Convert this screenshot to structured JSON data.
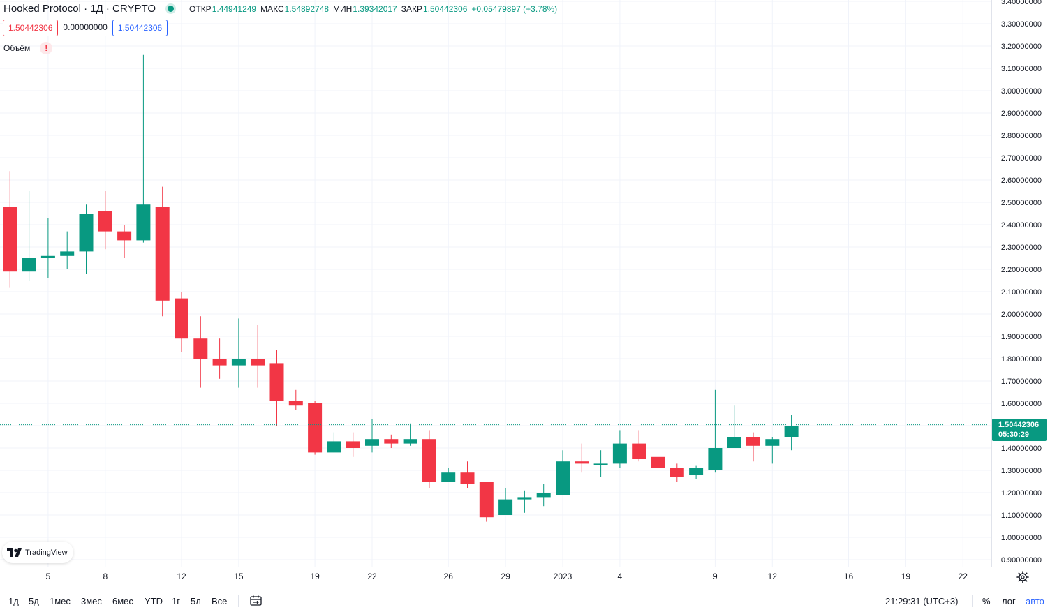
{
  "header": {
    "title": "Hooked Protocol · 1Д · CRYPTO",
    "open_label": "ОТКР",
    "open_value": "1.44941249",
    "high_label": "МАКС",
    "high_value": "1.54892748",
    "low_label": "МИН",
    "low_value": "1.39342017",
    "close_label": "ЗАКР",
    "close_value": "1.50442306",
    "change": "+0.05479897 (+3.78%)",
    "status_color": "#089981"
  },
  "price_boxes": {
    "sell": "1.50442306",
    "spread": "0.00000000",
    "buy": "1.50442306"
  },
  "volume": {
    "label": "Объём",
    "warning_icon": "exclamation-icon"
  },
  "branding": {
    "logo_text": "TradingView"
  },
  "last_price": {
    "value": "1.50442306",
    "countdown": "05:30:29",
    "color": "#089981"
  },
  "bottom_bar": {
    "ranges": [
      "1д",
      "5д",
      "1мес",
      "3мес",
      "6мес",
      "YTD",
      "1г",
      "5л",
      "Все"
    ],
    "clock": "21:29:31 (UTC+3)",
    "percent_label": "%",
    "log_label": "лог",
    "auto_label": "авто"
  },
  "chart_data": {
    "type": "candlestick",
    "colors": {
      "up": "#089981",
      "down": "#f23645",
      "grid": "#f0f3fa"
    },
    "y_ticks": [
      "0.90000000",
      "1.00000000",
      "1.10000000",
      "1.20000000",
      "1.30000000",
      "1.40000000",
      "1.50000000",
      "1.60000000",
      "1.70000000",
      "1.80000000",
      "1.90000000",
      "2.00000000",
      "2.10000000",
      "2.20000000",
      "2.30000000",
      "2.40000000",
      "2.50000000",
      "2.60000000",
      "2.70000000",
      "2.80000000",
      "2.90000000",
      "3.00000000",
      "3.10000000",
      "3.20000000",
      "3.30000000",
      "3.40000000"
    ],
    "y_range": [
      0.9,
      3.4
    ],
    "x_ticks": [
      {
        "label": "5",
        "day": 5
      },
      {
        "label": "8",
        "day": 8
      },
      {
        "label": "12",
        "day": 12
      },
      {
        "label": "15",
        "day": 15
      },
      {
        "label": "19",
        "day": 19
      },
      {
        "label": "22",
        "day": 22
      },
      {
        "label": "26",
        "day": 26
      },
      {
        "label": "29",
        "day": 29
      },
      {
        "label": "2023",
        "day": 32
      },
      {
        "label": "4",
        "day": 35
      },
      {
        "label": "9",
        "day": 40
      },
      {
        "label": "12",
        "day": 43
      },
      {
        "label": "16",
        "day": 47
      },
      {
        "label": "19",
        "day": 50
      },
      {
        "label": "22",
        "day": 53
      }
    ],
    "candles": [
      {
        "day": 3,
        "o": 2.48,
        "h": 2.64,
        "l": 2.12,
        "c": 2.19
      },
      {
        "day": 4,
        "o": 2.19,
        "h": 2.55,
        "l": 2.15,
        "c": 2.25
      },
      {
        "day": 5,
        "o": 2.25,
        "h": 2.43,
        "l": 2.16,
        "c": 2.26
      },
      {
        "day": 6,
        "o": 2.26,
        "h": 2.37,
        "l": 2.2,
        "c": 2.28
      },
      {
        "day": 7,
        "o": 2.28,
        "h": 2.49,
        "l": 2.18,
        "c": 2.45
      },
      {
        "day": 8,
        "o": 2.46,
        "h": 2.55,
        "l": 2.29,
        "c": 2.37
      },
      {
        "day": 9,
        "o": 2.37,
        "h": 2.4,
        "l": 2.25,
        "c": 2.33
      },
      {
        "day": 10,
        "o": 2.33,
        "h": 3.16,
        "l": 2.32,
        "c": 2.49
      },
      {
        "day": 11,
        "o": 2.48,
        "h": 2.57,
        "l": 1.99,
        "c": 2.06
      },
      {
        "day": 12,
        "o": 2.07,
        "h": 2.1,
        "l": 1.83,
        "c": 1.89
      },
      {
        "day": 13,
        "o": 1.89,
        "h": 1.99,
        "l": 1.67,
        "c": 1.8
      },
      {
        "day": 14,
        "o": 1.8,
        "h": 1.89,
        "l": 1.71,
        "c": 1.77
      },
      {
        "day": 15,
        "o": 1.77,
        "h": 1.98,
        "l": 1.67,
        "c": 1.8
      },
      {
        "day": 16,
        "o": 1.8,
        "h": 1.95,
        "l": 1.67,
        "c": 1.77
      },
      {
        "day": 17,
        "o": 1.78,
        "h": 1.84,
        "l": 1.5,
        "c": 1.61
      },
      {
        "day": 18,
        "o": 1.61,
        "h": 1.66,
        "l": 1.57,
        "c": 1.59
      },
      {
        "day": 19,
        "o": 1.6,
        "h": 1.61,
        "l": 1.37,
        "c": 1.38
      },
      {
        "day": 20,
        "o": 1.38,
        "h": 1.47,
        "l": 1.38,
        "c": 1.43
      },
      {
        "day": 21,
        "o": 1.43,
        "h": 1.47,
        "l": 1.36,
        "c": 1.4
      },
      {
        "day": 22,
        "o": 1.41,
        "h": 1.53,
        "l": 1.38,
        "c": 1.44
      },
      {
        "day": 23,
        "o": 1.44,
        "h": 1.46,
        "l": 1.4,
        "c": 1.42
      },
      {
        "day": 24,
        "o": 1.42,
        "h": 1.51,
        "l": 1.41,
        "c": 1.44
      },
      {
        "day": 25,
        "o": 1.44,
        "h": 1.48,
        "l": 1.22,
        "c": 1.25
      },
      {
        "day": 26,
        "o": 1.25,
        "h": 1.31,
        "l": 1.25,
        "c": 1.29
      },
      {
        "day": 27,
        "o": 1.29,
        "h": 1.34,
        "l": 1.22,
        "c": 1.24
      },
      {
        "day": 28,
        "o": 1.25,
        "h": 1.25,
        "l": 1.07,
        "c": 1.09
      },
      {
        "day": 29,
        "o": 1.1,
        "h": 1.22,
        "l": 1.1,
        "c": 1.17
      },
      {
        "day": 30,
        "o": 1.17,
        "h": 1.21,
        "l": 1.11,
        "c": 1.18
      },
      {
        "day": 31,
        "o": 1.18,
        "h": 1.24,
        "l": 1.14,
        "c": 1.2
      },
      {
        "day": 32,
        "o": 1.19,
        "h": 1.39,
        "l": 1.19,
        "c": 1.34
      },
      {
        "day": 33,
        "o": 1.34,
        "h": 1.42,
        "l": 1.29,
        "c": 1.33
      },
      {
        "day": 34,
        "o": 1.33,
        "h": 1.39,
        "l": 1.27,
        "c": 1.33
      },
      {
        "day": 35,
        "o": 1.33,
        "h": 1.48,
        "l": 1.31,
        "c": 1.42
      },
      {
        "day": 36,
        "o": 1.42,
        "h": 1.48,
        "l": 1.34,
        "c": 1.35
      },
      {
        "day": 37,
        "o": 1.36,
        "h": 1.37,
        "l": 1.22,
        "c": 1.31
      },
      {
        "day": 38,
        "o": 1.31,
        "h": 1.33,
        "l": 1.25,
        "c": 1.27
      },
      {
        "day": 39,
        "o": 1.28,
        "h": 1.32,
        "l": 1.26,
        "c": 1.31
      },
      {
        "day": 40,
        "o": 1.3,
        "h": 1.66,
        "l": 1.29,
        "c": 1.4
      },
      {
        "day": 41,
        "o": 1.4,
        "h": 1.59,
        "l": 1.4,
        "c": 1.45
      },
      {
        "day": 42,
        "o": 1.45,
        "h": 1.47,
        "l": 1.34,
        "c": 1.41
      },
      {
        "day": 43,
        "o": 1.41,
        "h": 1.45,
        "l": 1.33,
        "c": 1.44
      },
      {
        "day": 44,
        "o": 1.45,
        "h": 1.55,
        "l": 1.39,
        "c": 1.5
      }
    ]
  }
}
